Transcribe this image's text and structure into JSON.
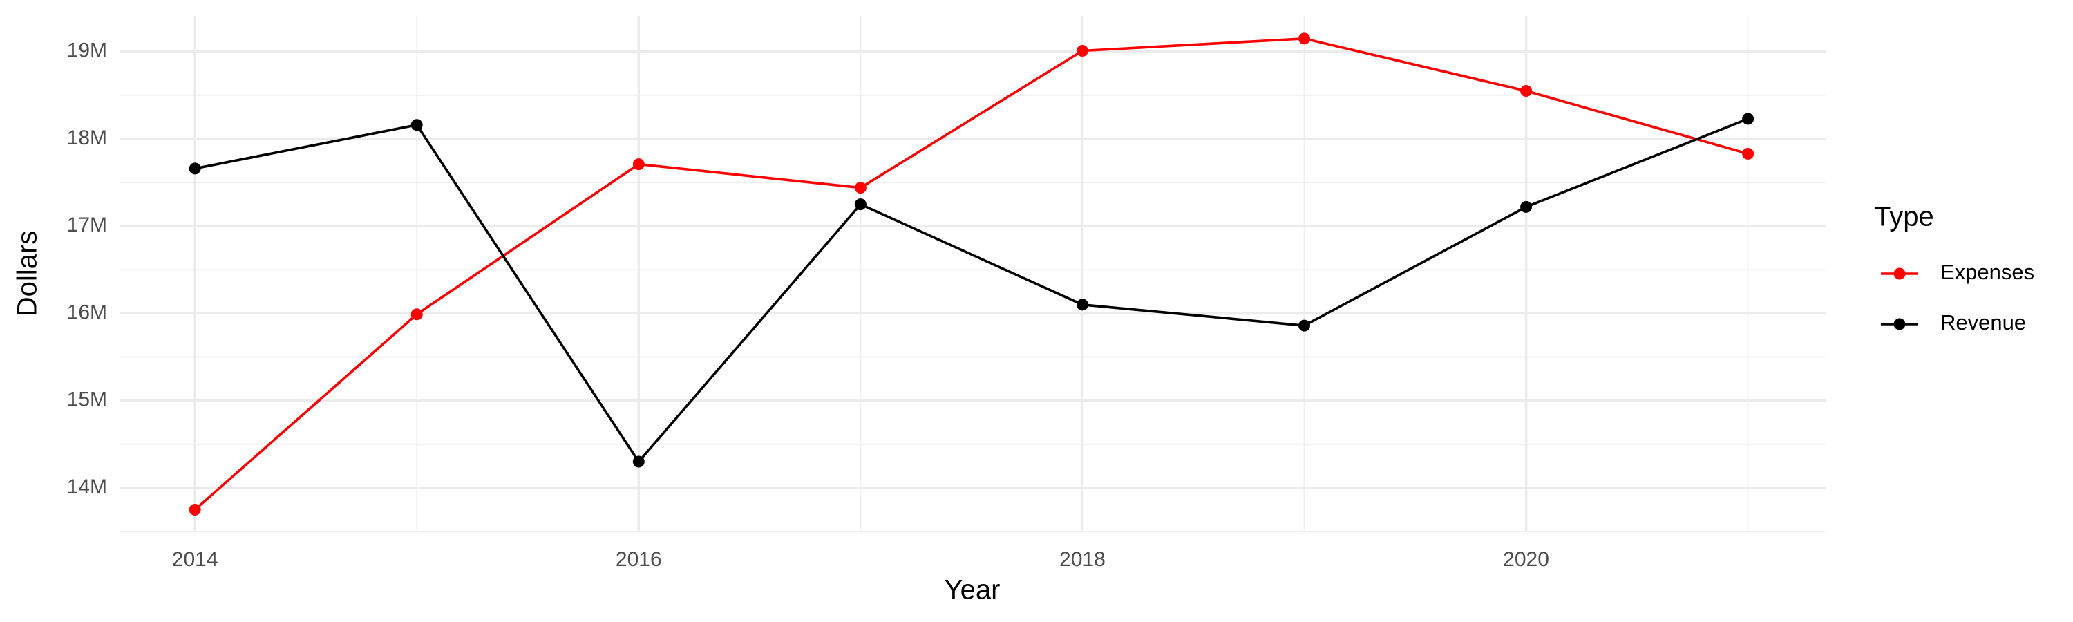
{
  "chart_data": {
    "type": "line",
    "x_label": "Year",
    "y_label": "Dollars",
    "legend_title": "Type",
    "x": [
      2014,
      2015,
      2016,
      2017,
      2018,
      2019,
      2020,
      2021
    ],
    "series": [
      {
        "name": "Expenses",
        "color": "#ff0000",
        "values": [
          13750000,
          15990000,
          17710000,
          17440000,
          19010000,
          19150000,
          18550000,
          17830000
        ]
      },
      {
        "name": "Revenue",
        "color": "#000000",
        "values": [
          17660000,
          18160000,
          14300000,
          17250000,
          16100000,
          15860000,
          17220000,
          18230000
        ]
      }
    ],
    "xlim": [
      2013.66,
      2021.35
    ],
    "ylim": [
      13500000,
      19410000
    ],
    "xticks": [
      2014,
      2016,
      2018,
      2020
    ],
    "yticks": [
      {
        "value": 14000000,
        "label": "14M"
      },
      {
        "value": 15000000,
        "label": "15M"
      },
      {
        "value": 16000000,
        "label": "16M"
      },
      {
        "value": 17000000,
        "label": "17M"
      },
      {
        "value": 18000000,
        "label": "18M"
      },
      {
        "value": 19000000,
        "label": "19M"
      }
    ],
    "grid": true,
    "legend": "right"
  }
}
